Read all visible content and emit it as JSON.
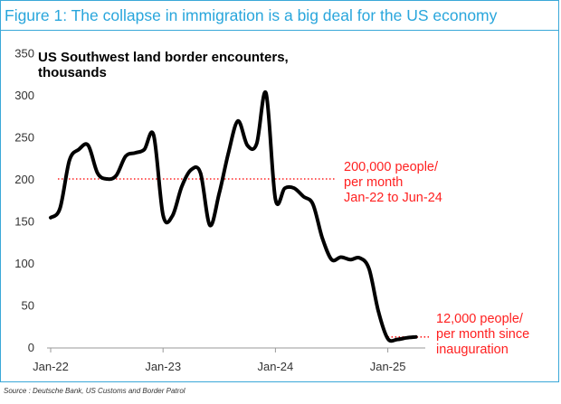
{
  "figure_title": "Figure 1: The collapse in immigration is a big deal for the US economy",
  "source": "Source : Deutsche Bank, US Customs and Border Patrol",
  "chart_data": {
    "type": "line",
    "title_lines": [
      "US Southwest land border encounters,",
      "thousands"
    ],
    "xlabel": "",
    "ylabel": "",
    "ylim": [
      0,
      350
    ],
    "yticks": [
      0,
      50,
      100,
      150,
      200,
      250,
      300,
      350
    ],
    "xticks": [
      {
        "label": "Jan-22",
        "x": "2022-01"
      },
      {
        "label": "Jan-23",
        "x": "2023-01"
      },
      {
        "label": "Jan-24",
        "x": "2024-01"
      },
      {
        "label": "Jan-25",
        "x": "2025-01"
      }
    ],
    "grid": false,
    "colors": {
      "line": "#000000",
      "annotation": "#ff2020",
      "frame": "#3aa8d8",
      "title": "#29a6dc"
    },
    "series": [
      {
        "x": [
          "2022-01",
          "2022-02",
          "2022-03",
          "2022-04",
          "2022-05",
          "2022-06",
          "2022-07",
          "2022-08",
          "2022-09",
          "2022-10",
          "2022-11",
          "2022-12",
          "2023-01",
          "2023-02",
          "2023-03",
          "2023-04",
          "2023-05",
          "2023-06",
          "2023-07",
          "2023-08",
          "2023-09",
          "2023-10",
          "2023-11",
          "2023-12",
          "2024-01",
          "2024-02",
          "2024-03",
          "2024-04",
          "2024-05",
          "2024-06",
          "2024-07",
          "2024-08",
          "2024-09",
          "2024-10",
          "2024-11",
          "2024-12",
          "2025-01",
          "2025-02",
          "2025-03",
          "2025-04"
        ],
        "values": [
          154,
          165,
          222,
          235,
          240,
          207,
          200,
          204,
          227,
          231,
          235,
          252,
          157,
          156,
          191,
          211,
          207,
          145,
          183,
          232,
          269,
          240,
          242,
          302,
          176,
          189,
          189,
          179,
          170,
          130,
          104,
          107,
          104,
          106,
          93,
          42,
          10,
          9,
          11,
          12
        ]
      }
    ],
    "reference_lines": [
      {
        "y": 200,
        "x_start": "2022-01",
        "x_end": "2024-06",
        "style": "dotted"
      },
      {
        "y": 12,
        "x_start": "2025-01",
        "x_end": "2025-04",
        "style": "dotted"
      }
    ],
    "annotations": [
      {
        "lines": [
          "200,000 people/",
          "per month",
          "Jan-22 to Jun-24"
        ]
      },
      {
        "lines": [
          "12,000 people/",
          "per  month since",
          "inauguration"
        ]
      }
    ]
  }
}
